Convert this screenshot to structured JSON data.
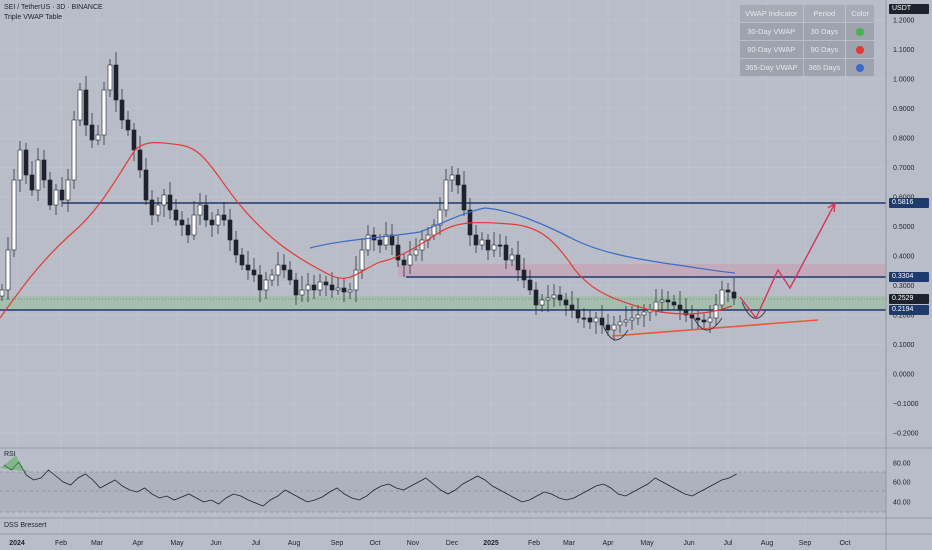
{
  "header": {
    "title": "SEI / TetherUS · 3D · BINANCE",
    "indicator": "Triple VWAP Table"
  },
  "currency_badge": "USDT",
  "legend_table": {
    "headers": [
      "VWAP Indicator",
      "Period",
      "Color"
    ],
    "rows": [
      {
        "name": "30-Day VWAP",
        "period": "30 Days",
        "color": "#4caf50",
        "icon": "check-icon"
      },
      {
        "name": "90-Day VWAP",
        "period": "90 Days",
        "color": "#e53935",
        "icon": "dot-icon"
      },
      {
        "name": "365-Day VWAP",
        "period": "365 Days",
        "color": "#3b6ac9",
        "icon": "dot-icon"
      }
    ]
  },
  "price_axis": {
    "ticks": [
      "1.2000",
      "1.1000",
      "1.0000",
      "0.9000",
      "0.8000",
      "0.7000",
      "0.6000",
      "0.5000",
      "0.4000",
      "0.3000",
      "0.2000",
      "0.1000",
      "0.0000",
      "−0.1000",
      "−0.2000"
    ],
    "badges": [
      {
        "label": "0.5816",
        "color": "#1e3a6e"
      },
      {
        "label": "0.3304",
        "color": "#1e3a6e"
      },
      {
        "label": "0.2529",
        "color": "#1e222d"
      },
      {
        "label": "0.2194",
        "color": "#1e3a6e"
      }
    ]
  },
  "rsi_axis": {
    "ticks": [
      "80.00",
      "60.00",
      "40.00"
    ]
  },
  "time_axis": {
    "labels": [
      "2024",
      "Feb",
      "Mar",
      "Apr",
      "May",
      "Jun",
      "Jul",
      "Aug",
      "Sep",
      "Oct",
      "Nov",
      "Dec",
      "2025",
      "Feb",
      "Mar",
      "Apr",
      "May",
      "Jun",
      "Jul",
      "Aug",
      "Sep",
      "Oct"
    ]
  },
  "panes": {
    "rsi": "RSI",
    "dss": "DSS Bressert"
  },
  "colors": {
    "background": "#b9bdc7",
    "candle": "#1e222d",
    "vwap_30": "#4caf50",
    "vwap_90": "#e53935",
    "vwap_365": "#3b6ac9",
    "support_zone": "#8fb89a",
    "resistance_zone": "#c7a6b8",
    "level_line": "#1e3a6e",
    "projection": "#d8325a"
  }
}
